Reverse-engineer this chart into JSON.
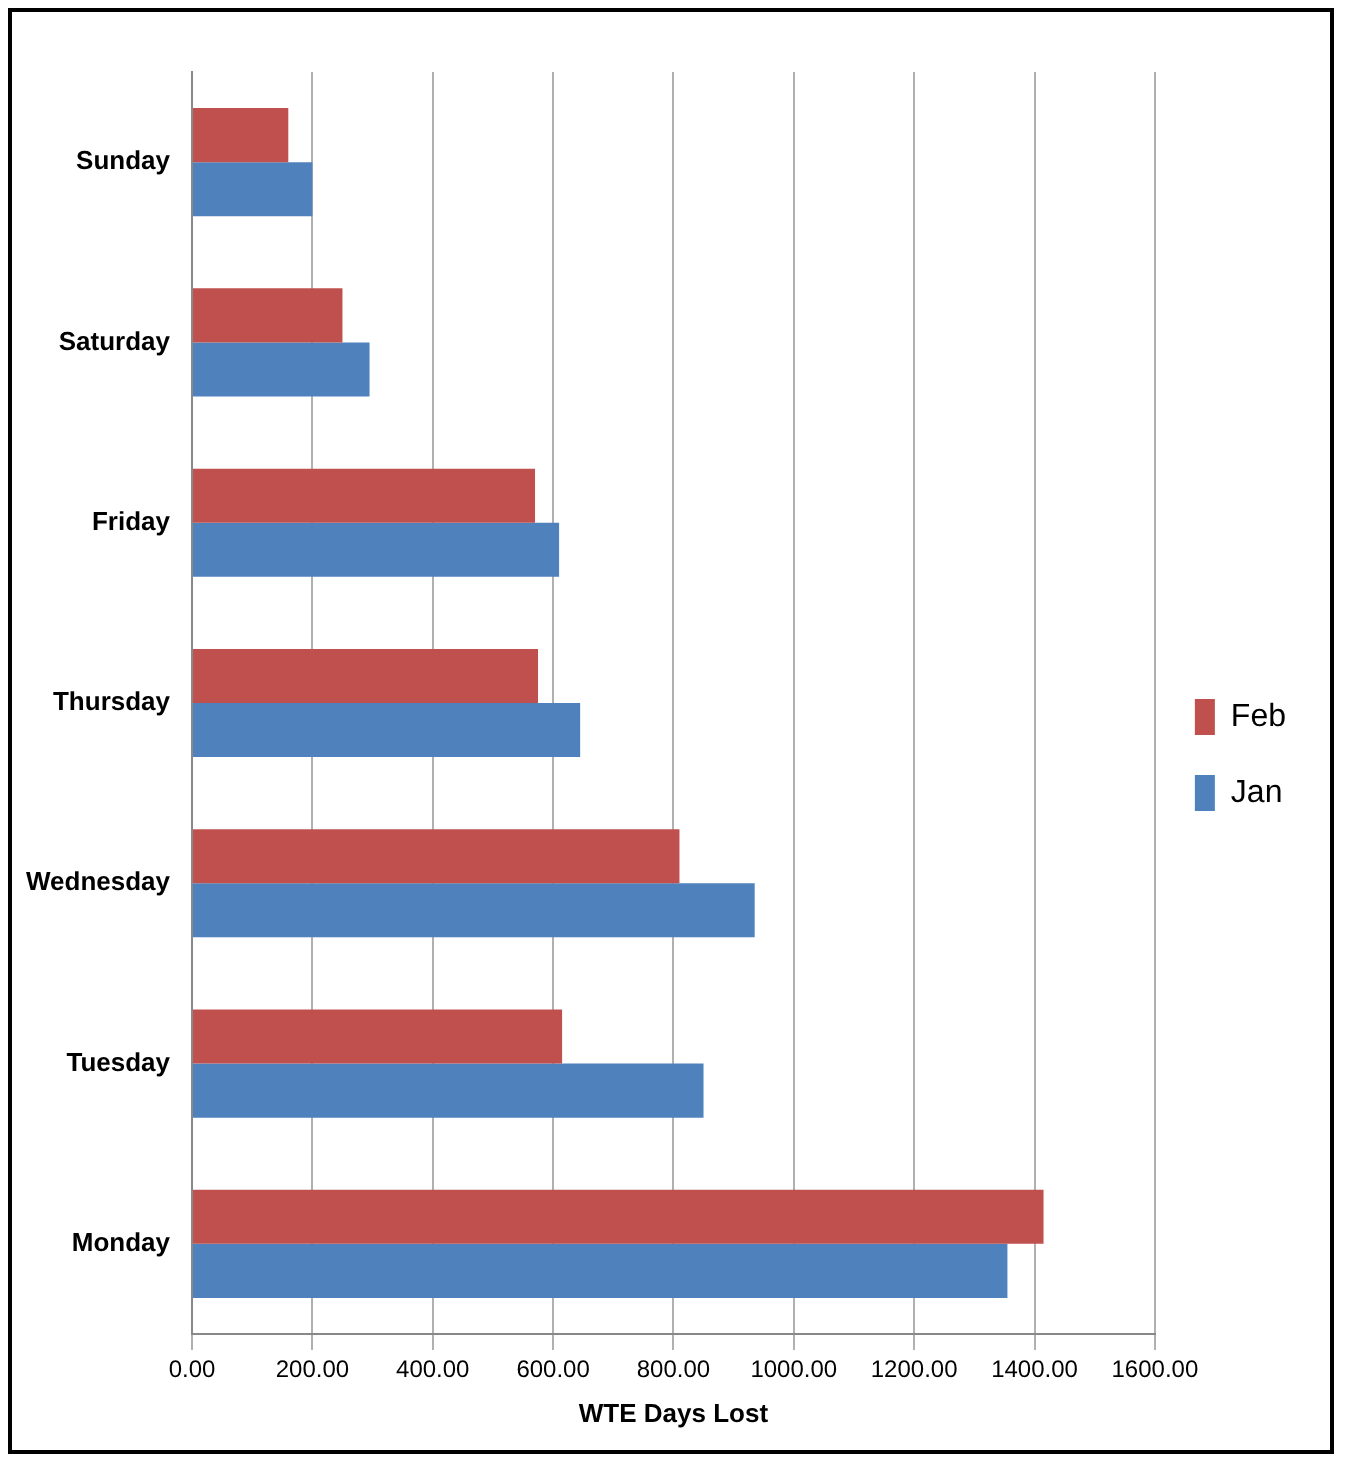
{
  "chart_data": {
    "type": "bar",
    "orientation": "horizontal",
    "xlabel": "WTE Days Lost",
    "categories": [
      "Sunday",
      "Saturday",
      "Friday",
      "Thursday",
      "Wednesday",
      "Tuesday",
      "Monday"
    ],
    "series": [
      {
        "name": "Feb",
        "color": "#c0504d",
        "values": [
          160,
          250,
          570,
          575,
          810,
          615,
          1415
        ]
      },
      {
        "name": "Jan",
        "color": "#4f81bd",
        "values": [
          200,
          295,
          610,
          645,
          935,
          850,
          1355
        ]
      }
    ],
    "xlim": [
      0,
      1600
    ],
    "xticks": [
      {
        "value": 0,
        "label": "0.00"
      },
      {
        "value": 200,
        "label": "200.00"
      },
      {
        "value": 400,
        "label": "400.00"
      },
      {
        "value": 600,
        "label": "600.00"
      },
      {
        "value": 800,
        "label": "800.00"
      },
      {
        "value": 1000,
        "label": "1000.00"
      },
      {
        "value": 1200,
        "label": "1200.00"
      },
      {
        "value": 1400,
        "label": "1400.00"
      },
      {
        "value": 1600,
        "label": "1600.00"
      }
    ],
    "grid": "x",
    "legend": "right"
  }
}
